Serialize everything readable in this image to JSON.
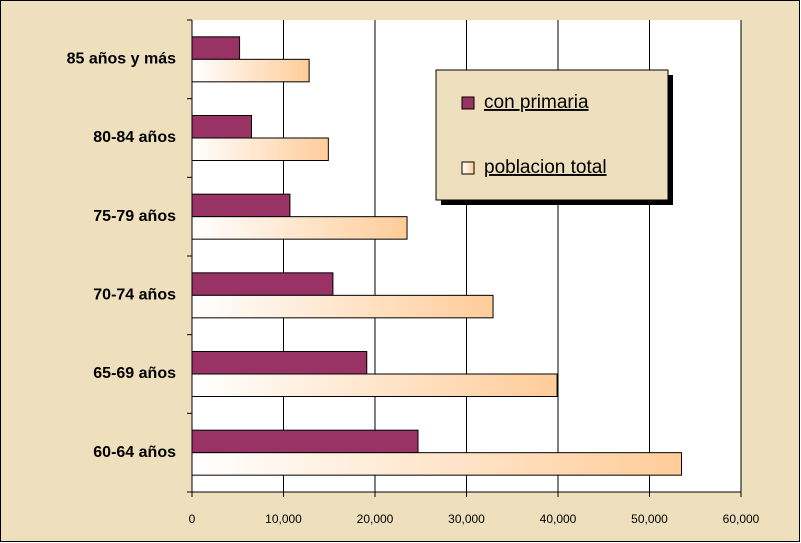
{
  "chart_data": {
    "type": "hbar",
    "categories": [
      "85 años y más",
      "80-84 años",
      "75-79 años",
      "70-74 años",
      "65-69 años",
      "60-64 años"
    ],
    "series": [
      {
        "name": "con primaria",
        "color": "#993366",
        "values": [
          5200,
          6500,
          10700,
          15400,
          19100,
          24700
        ]
      },
      {
        "name": "poblacion total",
        "color": "#ffcc99",
        "values": [
          12800,
          14900,
          23500,
          32900,
          39900,
          53500
        ]
      }
    ],
    "xlim": [
      0,
      60000
    ],
    "xticks": [
      0,
      {
        "value": 10000,
        "label": "10,000"
      },
      {
        "value": 20000,
        "label": "20,000"
      },
      {
        "value": 30000,
        "label": "30,000"
      },
      {
        "value": 40000,
        "label": "40,000"
      },
      {
        "value": 50000,
        "label": "50,000"
      },
      {
        "value": 60000,
        "label": "60,000"
      }
    ],
    "grid": true
  }
}
